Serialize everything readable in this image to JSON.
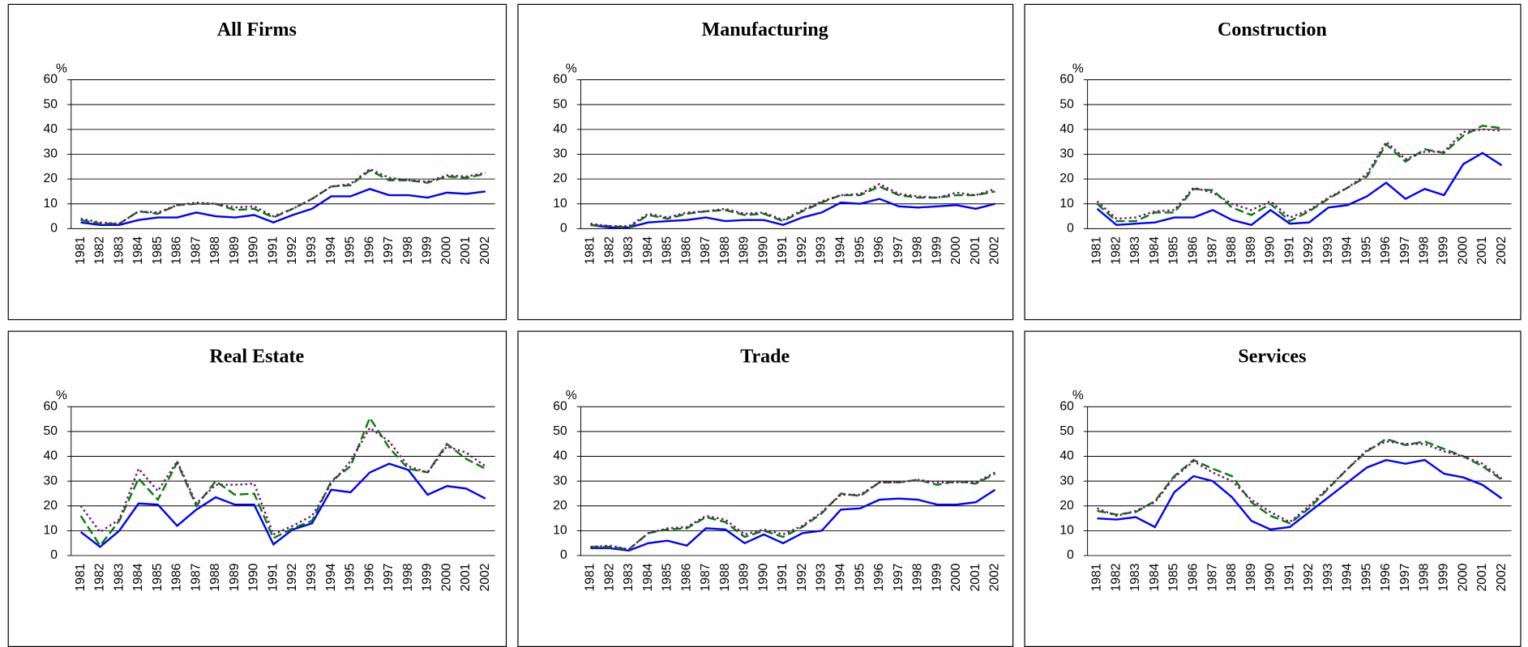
{
  "chart_data": [
    {
      "type": "line",
      "title": "All Firms",
      "y_label": "%",
      "categories": [
        "1981",
        "1982",
        "1983",
        "1984",
        "1985",
        "1986",
        "1987",
        "1988",
        "1989",
        "1990",
        "1991",
        "1992",
        "1993",
        "1994",
        "1995",
        "1996",
        "1997",
        "1998",
        "1999",
        "2000",
        "2001",
        "2002"
      ],
      "ylim": [
        0,
        60
      ],
      "yticks": [
        0,
        10,
        20,
        30,
        40,
        50,
        60
      ],
      "grid": true,
      "series": [
        {
          "color": "#0000ff",
          "style": "solid",
          "values": [
            2.5,
            1.5,
            1.5,
            3.5,
            4.5,
            4.5,
            6.5,
            5,
            4.5,
            5.5,
            2.5,
            5.5,
            8,
            13,
            13,
            16,
            13.5,
            13.5,
            12.5,
            14.5,
            14,
            15
          ]
        },
        {
          "color": "#008000",
          "style": "dashed",
          "values": [
            3.5,
            2,
            2,
            7,
            6,
            9.5,
            10,
            10,
            7.5,
            8,
            4.5,
            8,
            12,
            17,
            17.5,
            23.5,
            19.5,
            19.5,
            18.5,
            21,
            20.5,
            22
          ]
        },
        {
          "color": "#800080",
          "style": "dotted",
          "values": [
            4,
            2.5,
            2,
            7,
            6.5,
            9.5,
            10.5,
            10,
            8.5,
            9,
            5,
            8,
            12,
            17,
            18,
            24,
            20.5,
            19.5,
            19,
            21.5,
            21,
            22.5
          ]
        }
      ]
    },
    {
      "type": "line",
      "title": "Manufacturing",
      "y_label": "%",
      "categories": [
        "1981",
        "1982",
        "1983",
        "1984",
        "1985",
        "1986",
        "1987",
        "1988",
        "1989",
        "1990",
        "1991",
        "1992",
        "1993",
        "1994",
        "1995",
        "1996",
        "1997",
        "1998",
        "1999",
        "2000",
        "2001",
        "2002"
      ],
      "ylim": [
        0,
        60
      ],
      "yticks": [
        0,
        10,
        20,
        30,
        40,
        50,
        60
      ],
      "grid": true,
      "series": [
        {
          "color": "#0000ff",
          "style": "solid",
          "values": [
            1.5,
            0.5,
            0.5,
            2.5,
            3,
            3.5,
            4.5,
            3,
            3.5,
            3.5,
            1.5,
            4.5,
            6.5,
            10.5,
            10,
            12,
            9,
            8.5,
            9,
            9.5,
            8,
            10
          ]
        },
        {
          "color": "#008000",
          "style": "dashed",
          "values": [
            1.5,
            1,
            0.5,
            5.5,
            4,
            6,
            7,
            7.5,
            5.5,
            6,
            3,
            7,
            10.5,
            13.5,
            13.5,
            17,
            13.5,
            12.5,
            12.5,
            13.5,
            13.5,
            15
          ]
        },
        {
          "color": "#800080",
          "style": "dotted",
          "values": [
            2,
            1,
            1,
            6,
            4.5,
            6.5,
            7,
            8,
            6,
            6.5,
            3.5,
            7.5,
            11,
            13.5,
            14,
            18,
            14,
            13,
            12.5,
            14.5,
            13.5,
            16
          ]
        }
      ]
    },
    {
      "type": "line",
      "title": "Construction",
      "y_label": "%",
      "categories": [
        "1981",
        "1982",
        "1983",
        "1984",
        "1985",
        "1986",
        "1987",
        "1988",
        "1989",
        "1990",
        "1991",
        "1992",
        "1993",
        "1994",
        "1995",
        "1996",
        "1997",
        "1998",
        "1999",
        "2000",
        "2001",
        "2002"
      ],
      "ylim": [
        0,
        60
      ],
      "yticks": [
        0,
        10,
        20,
        30,
        40,
        50,
        60
      ],
      "grid": true,
      "series": [
        {
          "color": "#0000ff",
          "style": "solid",
          "values": [
            8,
            1.5,
            2,
            2.5,
            4.5,
            4.5,
            7.5,
            3.5,
            1.5,
            7.5,
            2,
            2.5,
            8.5,
            9.5,
            13,
            18.5,
            12,
            16,
            13.5,
            26,
            30.5,
            25.5
          ]
        },
        {
          "color": "#008000",
          "style": "dashed",
          "values": [
            10,
            3,
            3,
            6.5,
            6.5,
            16,
            15.5,
            8.5,
            5.5,
            10,
            3,
            7,
            12,
            16.5,
            21,
            34,
            27,
            32,
            30.5,
            37.5,
            41.5,
            40.5
          ]
        },
        {
          "color": "#800080",
          "style": "dotted",
          "values": [
            11,
            4,
            4.5,
            7,
            7.5,
            16.5,
            14.5,
            10,
            7.5,
            11,
            4.5,
            7.5,
            12.5,
            16.5,
            22,
            35,
            28,
            31,
            31,
            39,
            40,
            39.5
          ]
        }
      ]
    },
    {
      "type": "line",
      "title": "Real Estate",
      "y_label": "%",
      "categories": [
        "1981",
        "1982",
        "1983",
        "1984",
        "1985",
        "1986",
        "1987",
        "1988",
        "1989",
        "1990",
        "1991",
        "1992",
        "1993",
        "1994",
        "1995",
        "1996",
        "1997",
        "1998",
        "1999",
        "2000",
        "2001",
        "2002"
      ],
      "ylim": [
        0,
        60
      ],
      "yticks": [
        0,
        10,
        20,
        30,
        40,
        50,
        60
      ],
      "grid": true,
      "series": [
        {
          "color": "#0000ff",
          "style": "solid",
          "values": [
            9.5,
            3.5,
            10,
            21,
            20.5,
            12,
            18.5,
            23.5,
            20.5,
            20.5,
            4.5,
            10.5,
            13,
            26.5,
            25.5,
            33.5,
            37,
            34.5,
            24.5,
            28,
            27,
            23
          ]
        },
        {
          "color": "#008000",
          "style": "dashed",
          "values": [
            16,
            4,
            14,
            31,
            22.5,
            37.5,
            20,
            30,
            24.5,
            25,
            7,
            11,
            14,
            30,
            36,
            55.5,
            43.5,
            35,
            33.5,
            45,
            39,
            35
          ]
        },
        {
          "color": "#800080",
          "style": "dotted",
          "values": [
            20,
            9.5,
            14.5,
            35,
            26,
            38,
            21,
            28.5,
            28.5,
            29,
            8.5,
            12,
            16,
            29,
            38,
            51.5,
            46,
            36,
            33.5,
            44,
            41.5,
            36
          ]
        }
      ]
    },
    {
      "type": "line",
      "title": "Trade",
      "y_label": "%",
      "categories": [
        "1981",
        "1982",
        "1983",
        "1984",
        "1985",
        "1986",
        "1987",
        "1988",
        "1989",
        "1990",
        "1991",
        "1992",
        "1993",
        "1994",
        "1995",
        "1996",
        "1997",
        "1998",
        "1999",
        "2000",
        "2001",
        "2002"
      ],
      "ylim": [
        0,
        60
      ],
      "yticks": [
        0,
        10,
        20,
        30,
        40,
        50,
        60
      ],
      "grid": true,
      "series": [
        {
          "color": "#0000ff",
          "style": "solid",
          "values": [
            3,
            3,
            2,
            5,
            6,
            4,
            11,
            10.5,
            5,
            8.5,
            5,
            9,
            10,
            18.5,
            19,
            22.5,
            23,
            22.5,
            20.5,
            20.5,
            21.5,
            26.5
          ]
        },
        {
          "color": "#008000",
          "style": "dashed",
          "values": [
            3.5,
            3.5,
            2.5,
            9,
            10.5,
            11,
            15.5,
            13.5,
            7.5,
            10,
            7.5,
            11.5,
            17,
            25,
            24,
            29.5,
            29.5,
            30.5,
            28.5,
            30,
            29,
            33
          ]
        },
        {
          "color": "#800080",
          "style": "dotted",
          "values": [
            3.5,
            4,
            2.5,
            9,
            11,
            11.5,
            16,
            14.5,
            8.5,
            10.5,
            8.5,
            12,
            17.5,
            24.5,
            24.5,
            29.5,
            29.5,
            30.5,
            29.5,
            29.5,
            29.5,
            33.5
          ]
        }
      ]
    },
    {
      "type": "line",
      "title": "Services",
      "y_label": "%",
      "categories": [
        "1981",
        "1982",
        "1983",
        "1984",
        "1985",
        "1986",
        "1987",
        "1988",
        "1989",
        "1990",
        "1991",
        "1992",
        "1993",
        "1994",
        "1995",
        "1996",
        "1997",
        "1998",
        "1999",
        "2000",
        "2001",
        "2002"
      ],
      "ylim": [
        0,
        60
      ],
      "yticks": [
        0,
        10,
        20,
        30,
        40,
        50,
        60
      ],
      "grid": true,
      "series": [
        {
          "color": "#0000ff",
          "style": "solid",
          "values": [
            15,
            14.5,
            15.5,
            11.5,
            25.5,
            32,
            30,
            23.5,
            14,
            10.5,
            11.5,
            17.5,
            23.5,
            29.5,
            35.5,
            38.5,
            37,
            38.5,
            33,
            31.5,
            28.5,
            23
          ]
        },
        {
          "color": "#008000",
          "style": "dashed",
          "values": [
            18,
            16.5,
            17.5,
            22,
            32,
            38.5,
            35,
            32,
            21.5,
            16,
            13,
            19,
            27,
            35,
            42,
            47,
            44.5,
            46,
            43,
            40,
            36,
            30.5
          ]
        },
        {
          "color": "#800080",
          "style": "dotted",
          "values": [
            19,
            16,
            18,
            21.5,
            31.5,
            38,
            33.5,
            30,
            22.5,
            17.5,
            13.5,
            20,
            27.5,
            35,
            42.5,
            46,
            45,
            45,
            42,
            40,
            37,
            31
          ]
        }
      ]
    }
  ]
}
